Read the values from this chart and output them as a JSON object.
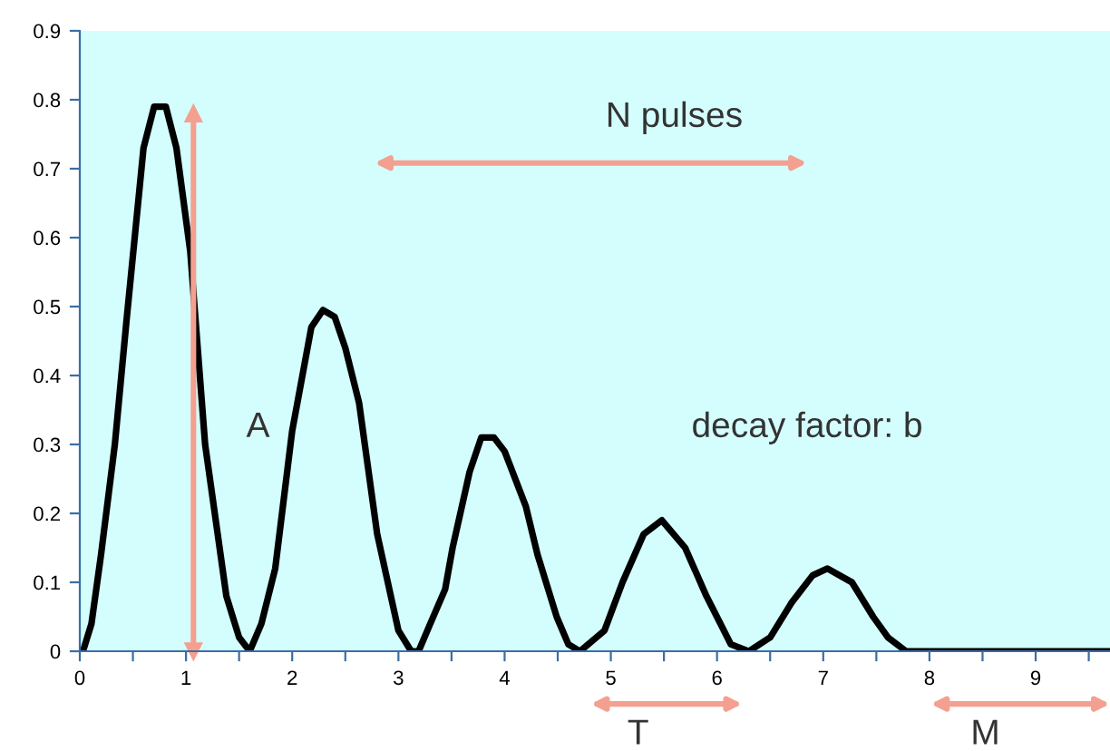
{
  "chart_data": {
    "type": "line",
    "x": [
      0.03,
      0.11,
      0.2,
      0.33,
      0.44,
      0.6,
      0.7,
      0.81,
      0.91,
      1.04,
      1.18,
      1.38,
      1.5,
      1.6,
      1.71,
      1.84,
      2.0,
      2.18,
      2.29,
      2.4,
      2.5,
      2.63,
      2.8,
      3.0,
      3.12,
      3.19,
      3.3,
      3.44,
      3.51,
      3.67,
      3.78,
      3.9,
      4.0,
      4.2,
      4.31,
      4.49,
      4.6,
      4.71,
      4.94,
      5.11,
      5.31,
      5.48,
      5.7,
      5.9,
      6.13,
      6.3,
      6.5,
      6.7,
      6.9,
      7.04,
      7.27,
      7.47,
      7.61,
      7.78,
      8.5,
      9.7
    ],
    "series": [
      {
        "color": "#000000",
        "values": [
          0,
          0.04,
          0.14,
          0.3,
          0.48,
          0.73,
          0.79,
          0.79,
          0.73,
          0.58,
          0.3,
          0.08,
          0.02,
          0,
          0.04,
          0.12,
          0.32,
          0.47,
          0.495,
          0.485,
          0.44,
          0.36,
          0.17,
          0.03,
          0,
          0,
          0.04,
          0.09,
          0.15,
          0.26,
          0.31,
          0.31,
          0.29,
          0.21,
          0.14,
          0.05,
          0.01,
          0,
          0.03,
          0.1,
          0.17,
          0.19,
          0.15,
          0.08,
          0.01,
          0,
          0.02,
          0.07,
          0.11,
          0.12,
          0.1,
          0.05,
          0.02,
          0,
          0,
          0
        ]
      },
      {
        "type": "line",
        "color": "#f4a090",
        "marker": "triangle",
        "x": [
          1.07,
          1.07
        ],
        "values": [
          0,
          0.78
        ]
      }
    ],
    "xlim": [
      0,
      9.7
    ],
    "xticks": [
      0,
      {
        "value": 0.5,
        "label": null
      },
      1,
      {
        "value": 1.5,
        "label": null
      },
      2,
      {
        "value": 2.5,
        "label": null
      },
      3,
      {
        "value": 3.5,
        "label": null
      },
      4,
      {
        "value": 4.5,
        "label": null
      },
      5,
      {
        "value": 5.5,
        "label": null
      },
      6,
      {
        "value": 6.5,
        "label": null
      },
      7,
      {
        "value": 7.5,
        "label": null
      },
      8,
      {
        "value": 8.5,
        "label": null
      },
      9,
      {
        "value": 9.5,
        "label": null
      }
    ],
    "ylim": [
      0,
      0.9
    ],
    "yticks": [
      0,
      0.1,
      0.2,
      0.3,
      0.4,
      0.5,
      0.6,
      0.7,
      0.8,
      0.9
    ],
    "grid": false,
    "marker": "none",
    "line_style": "solid",
    "annotations": [
      "N pulses",
      "A",
      "decay factor: b",
      "T",
      "M"
    ]
  }
}
